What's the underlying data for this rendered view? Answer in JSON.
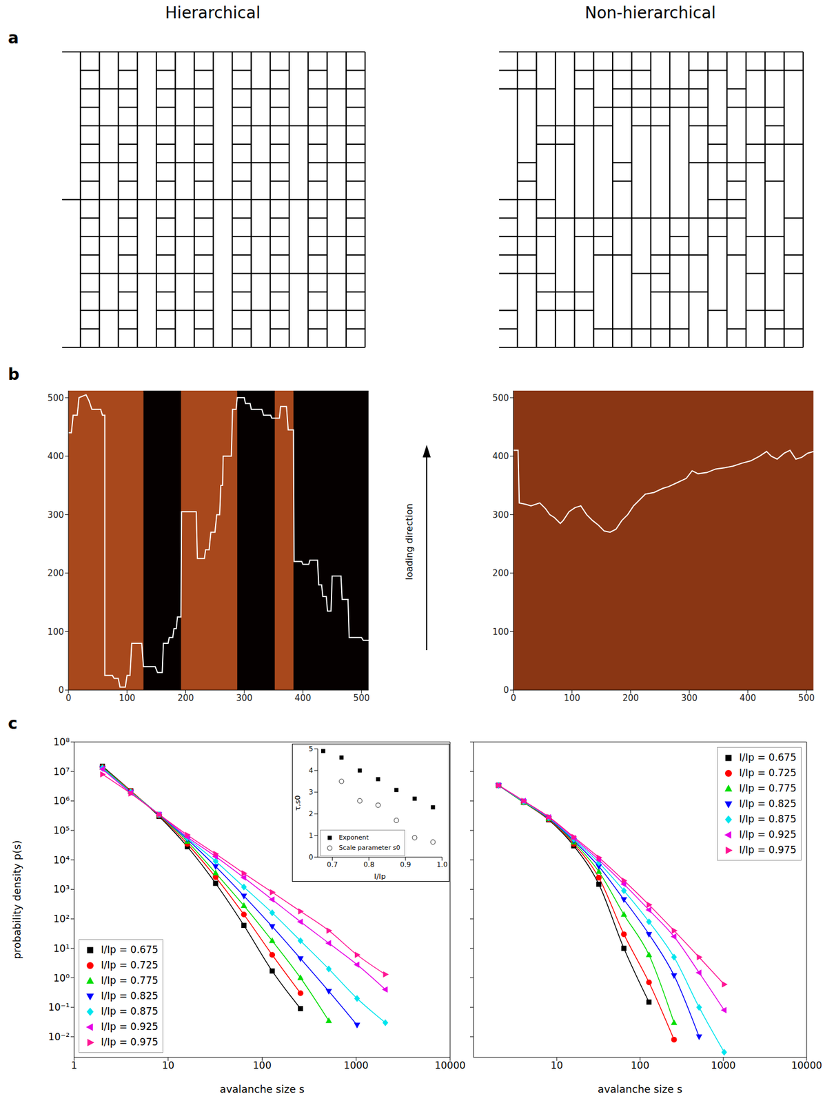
{
  "column_titles": [
    "Hierarchical",
    "Non-hierarchical"
  ],
  "panel_labels": [
    "a",
    "b",
    "c"
  ],
  "annotation": "loading direction",
  "chart_data": [
    {
      "type": "line",
      "xlim": [
        0,
        512
      ],
      "ylim": [
        0,
        512
      ],
      "xticks": [
        0,
        100,
        200,
        300,
        400,
        500
      ],
      "yticks": [
        0,
        100,
        200,
        300,
        400,
        500
      ],
      "regions": [
        {
          "x": [
            0,
            512
          ],
          "color": "#a8481c"
        },
        {
          "x": [
            128,
            192
          ],
          "color": "#050000"
        },
        {
          "x": [
            288,
            352
          ],
          "color": "#050000"
        },
        {
          "x": [
            384,
            512
          ],
          "color": "#050000"
        }
      ],
      "series": [
        {
          "color": "#ffffff",
          "x": [
            0,
            5,
            8,
            15,
            18,
            30,
            35,
            40,
            55,
            58,
            62,
            62,
            75,
            78,
            85,
            88,
            97,
            100,
            105,
            108,
            125,
            128,
            148,
            152,
            160,
            162,
            170,
            172,
            178,
            180,
            184,
            186,
            192,
            193,
            218,
            220,
            232,
            234,
            240,
            243,
            250,
            253,
            258,
            260,
            263,
            264,
            278,
            280,
            286,
            288,
            300,
            302,
            310,
            312,
            330,
            333,
            345,
            347,
            360,
            362,
            372,
            375,
            384,
            385,
            398,
            400,
            410,
            412,
            425,
            427,
            432,
            434,
            440,
            442,
            448,
            450,
            465,
            467,
            477,
            479,
            500,
            503,
            512
          ],
          "values": [
            440,
            440,
            470,
            470,
            500,
            505,
            495,
            480,
            480,
            470,
            470,
            25,
            25,
            20,
            20,
            5,
            5,
            25,
            25,
            80,
            80,
            40,
            40,
            30,
            30,
            80,
            80,
            90,
            90,
            105,
            105,
            125,
            125,
            305,
            305,
            225,
            225,
            240,
            240,
            270,
            270,
            300,
            300,
            350,
            350,
            400,
            400,
            480,
            480,
            500,
            500,
            490,
            490,
            480,
            480,
            470,
            470,
            465,
            465,
            485,
            485,
            445,
            445,
            220,
            220,
            215,
            215,
            222,
            222,
            180,
            180,
            160,
            160,
            135,
            135,
            195,
            195,
            155,
            155,
            90,
            90,
            85,
            85
          ]
        }
      ]
    },
    {
      "type": "line",
      "xlim": [
        0,
        512
      ],
      "ylim": [
        0,
        512
      ],
      "xticks": [
        0,
        100,
        200,
        300,
        400,
        500
      ],
      "yticks": [
        0,
        100,
        200,
        300,
        400,
        500
      ],
      "regions": [
        {
          "x": [
            0,
            512
          ],
          "color": "#8a3614"
        }
      ],
      "series": [
        {
          "color": "#ffffff",
          "x": [
            0,
            8,
            10,
            20,
            30,
            45,
            55,
            62,
            70,
            80,
            85,
            95,
            105,
            115,
            125,
            135,
            145,
            155,
            165,
            175,
            185,
            195,
            205,
            215,
            225,
            240,
            255,
            265,
            280,
            295,
            305,
            315,
            330,
            345,
            360,
            375,
            390,
            405,
            420,
            432,
            440,
            450,
            462,
            472,
            482,
            492,
            502,
            512
          ],
          "values": [
            410,
            410,
            320,
            318,
            315,
            320,
            310,
            300,
            295,
            285,
            290,
            305,
            312,
            315,
            300,
            290,
            282,
            272,
            270,
            275,
            290,
            300,
            315,
            325,
            335,
            338,
            345,
            348,
            355,
            362,
            375,
            370,
            372,
            378,
            380,
            383,
            388,
            392,
            400,
            408,
            400,
            395,
            405,
            410,
            395,
            398,
            405,
            408
          ]
        }
      ]
    },
    {
      "type": "line",
      "log": true,
      "xlim": [
        1,
        10000
      ],
      "ylim": [
        0.002,
        100000000
      ],
      "xticks": [
        1,
        10,
        100,
        1000,
        10000
      ],
      "yticks": [
        {
          "value": 0.01,
          "label": "10⁻²"
        },
        {
          "value": 0.1,
          "label": "10⁻¹"
        },
        {
          "value": 1,
          "label": "10⁰"
        },
        {
          "value": 10,
          "label": "10¹"
        },
        {
          "value": 100,
          "label": "10²"
        },
        {
          "value": 1000,
          "label": "10³"
        },
        {
          "value": 10000,
          "label": "10⁴"
        },
        {
          "value": 100000,
          "label": "10⁵"
        },
        {
          "value": 1000000,
          "label": "10⁶"
        },
        {
          "value": 10000000,
          "label": "10⁷"
        },
        {
          "value": 100000000,
          "label": "10⁸"
        }
      ],
      "xlabel": "avalanche size s",
      "ylabel": "probability density p(s)",
      "legend": "bottom-left",
      "series": [
        {
          "name": "I/Ip = 0.675",
          "color": "#000000",
          "marker": "square",
          "x": [
            2,
            4,
            8,
            16,
            32,
            64,
            128,
            256
          ],
          "values": [
            15000000,
            2200000,
            300000,
            28000,
            1600,
            60,
            1.7,
            0.09
          ]
        },
        {
          "name": "I/Ip = 0.725",
          "color": "#ff0000",
          "marker": "circle",
          "x": [
            2,
            4,
            8,
            16,
            32,
            64,
            128,
            256
          ],
          "values": [
            14000000,
            2200000,
            320000,
            35000,
            2600,
            140,
            6,
            0.3
          ]
        },
        {
          "name": "I/Ip = 0.775",
          "color": "#00dd00",
          "marker": "triangle-up",
          "x": [
            2,
            4,
            8,
            16,
            32,
            64,
            128,
            256,
            512
          ],
          "values": [
            14000000,
            2100000,
            330000,
            42000,
            3600,
            280,
            18,
            1,
            0.035
          ]
        },
        {
          "name": "I/Ip = 0.825",
          "color": "#0000ff",
          "marker": "triangle-down",
          "x": [
            2,
            4,
            8,
            16,
            32,
            64,
            128,
            256,
            512,
            1024
          ],
          "values": [
            13000000,
            2000000,
            340000,
            50000,
            6000,
            600,
            55,
            4.5,
            0.35,
            0.025
          ]
        },
        {
          "name": "I/Ip = 0.875",
          "color": "#00e5ee",
          "marker": "diamond",
          "x": [
            2,
            4,
            8,
            16,
            32,
            64,
            128,
            256,
            512,
            1024,
            2048
          ],
          "values": [
            13000000,
            2000000,
            350000,
            55000,
            9000,
            1200,
            160,
            18,
            2,
            0.2,
            0.03
          ]
        },
        {
          "name": "I/Ip = 0.925",
          "color": "#e600e6",
          "marker": "triangle-left",
          "x": [
            2,
            4,
            8,
            16,
            32,
            64,
            128,
            256,
            512,
            1024,
            2048
          ],
          "values": [
            12000000,
            1900000,
            350000,
            60000,
            13000,
            2500,
            450,
            80,
            15,
            2.8,
            0.4
          ]
        },
        {
          "name": "I/Ip = 0.975",
          "color": "#ff1493",
          "marker": "triangle-right",
          "x": [
            2,
            4,
            8,
            16,
            32,
            64,
            128,
            256,
            512,
            1024,
            2048
          ],
          "values": [
            8000000,
            1800000,
            350000,
            70000,
            16000,
            3500,
            800,
            180,
            40,
            6,
            1.3
          ]
        }
      ]
    },
    {
      "type": "scatter",
      "xlim": [
        0.66,
        1
      ],
      "ylim": [
        0,
        5
      ],
      "xticks": [
        0.7,
        0.8,
        0.9,
        {
          "value": 1,
          "label": "1.0"
        }
      ],
      "yticks": [
        0,
        1,
        2,
        3,
        4,
        5
      ],
      "xlabel": "I/Ip",
      "ylabel": "τ,s0",
      "legend": "bottom-left",
      "x": [
        0.675,
        0.725,
        0.775,
        0.825,
        0.875,
        0.925,
        0.975
      ],
      "series": [
        {
          "name": "Exponent",
          "color": "#000000",
          "marker": "square",
          "values": [
            4.9,
            4.6,
            4.0,
            3.6,
            3.1,
            2.7,
            2.3
          ]
        },
        {
          "name": "Scale parameter s0",
          "color": "#555555",
          "marker": "open-circle",
          "values": [
            null,
            3.5,
            2.6,
            2.4,
            1.7,
            0.9,
            0.7
          ]
        }
      ]
    },
    {
      "type": "line",
      "log": true,
      "tick_labels": "x",
      "xlim": [
        1,
        10000
      ],
      "ylim": [
        0.002,
        100000000
      ],
      "xticks": [
        10,
        100,
        1000,
        10000
      ],
      "yticks": [
        0.01,
        0.1,
        1,
        10,
        100,
        1000,
        10000,
        100000,
        1000000,
        10000000,
        100000000
      ],
      "xlabel": "avalanche size s",
      "legend": "top-right",
      "series": [
        {
          "name": "I/Ip = 0.675",
          "color": "#000000",
          "marker": "square",
          "x": [
            2,
            4,
            8,
            16,
            32,
            64,
            128
          ],
          "values": [
            3400000,
            900000,
            230000,
            30000,
            1500,
            10,
            0.15
          ]
        },
        {
          "name": "I/Ip = 0.725",
          "color": "#ff0000",
          "marker": "circle",
          "x": [
            2,
            4,
            8,
            16,
            32,
            64,
            128,
            256
          ],
          "values": [
            3400000,
            900000,
            240000,
            35000,
            2500,
            30,
            0.7,
            0.008
          ]
        },
        {
          "name": "I/Ip = 0.775",
          "color": "#00dd00",
          "marker": "triangle-up",
          "x": [
            2,
            4,
            8,
            16,
            32,
            64,
            128,
            256
          ],
          "values": [
            3400000,
            900000,
            250000,
            40000,
            4000,
            140,
            6,
            0.03
          ]
        },
        {
          "name": "I/Ip = 0.825",
          "color": "#0000ff",
          "marker": "triangle-down",
          "x": [
            2,
            4,
            8,
            16,
            32,
            64,
            128,
            256,
            512
          ],
          "values": [
            3400000,
            950000,
            260000,
            45000,
            6000,
            450,
            30,
            1.2,
            0.01
          ]
        },
        {
          "name": "I/Ip = 0.875",
          "color": "#00e5ee",
          "marker": "diamond",
          "x": [
            2,
            4,
            8,
            16,
            32,
            64,
            128,
            256,
            512,
            1024
          ],
          "values": [
            3400000,
            950000,
            270000,
            50000,
            8000,
            900,
            80,
            5,
            0.1,
            0.003
          ]
        },
        {
          "name": "I/Ip = 0.925",
          "color": "#e600e6",
          "marker": "triangle-left",
          "x": [
            2,
            4,
            8,
            16,
            32,
            64,
            128,
            256,
            512,
            1024
          ],
          "values": [
            3400000,
            1000000,
            280000,
            55000,
            10000,
            1500,
            200,
            25,
            1.5,
            0.08
          ]
        },
        {
          "name": "I/Ip = 0.975",
          "color": "#ff1493",
          "marker": "triangle-right",
          "x": [
            2,
            4,
            8,
            16,
            32,
            64,
            128,
            256,
            512,
            1024
          ],
          "values": [
            3400000,
            1000000,
            290000,
            60000,
            12000,
            2000,
            300,
            40,
            5,
            0.6
          ]
        }
      ]
    }
  ]
}
